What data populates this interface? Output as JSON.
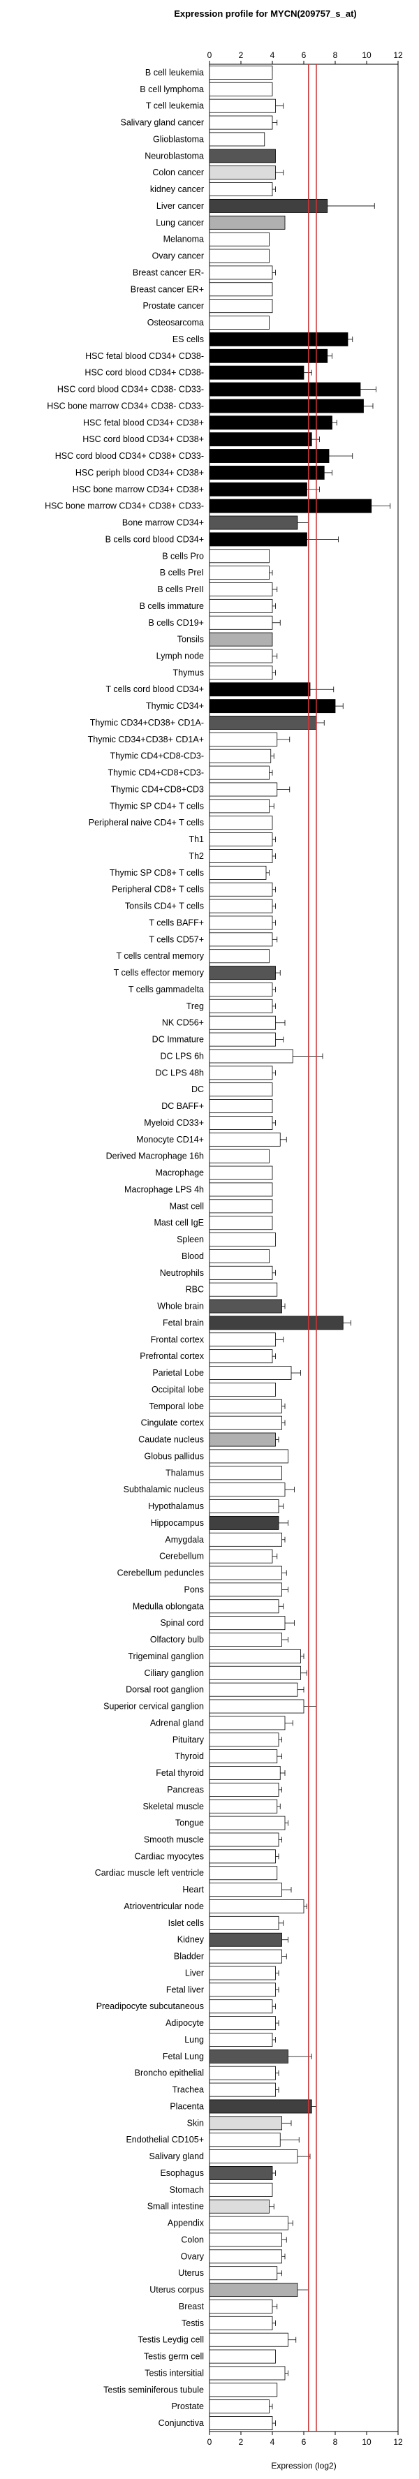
{
  "chart_data": {
    "type": "bar",
    "orientation": "horizontal",
    "title": "Expression profile for MYCN(209757_s_at)",
    "xlabel": "Expression (log2)",
    "xlim": [
      0,
      12
    ],
    "xticks": [
      0,
      2,
      4,
      6,
      8,
      10,
      12
    ],
    "reference_lines": [
      {
        "x": 6.3,
        "color": "#cc3333"
      },
      {
        "x": 6.8,
        "color": "#cc3333"
      }
    ],
    "colors": {
      "dark_gray": "#555555",
      "darker_gray": "#404040",
      "light_gray": "#b0b0b0",
      "very_light_gray": "#dcdcdc",
      "black": "#000000",
      "white": "#ffffff",
      "red": "#cc3333"
    },
    "categories": [
      "B cell leukemia",
      "B cell lymphoma",
      "T cell leukemia",
      "Salivary gland cancer",
      "Glioblastoma",
      "Neuroblastoma",
      "Colon cancer",
      "kidney cancer",
      "Liver cancer",
      "Lung cancer",
      "Melanoma",
      "Ovary cancer",
      "Breast cancer ER-",
      "Breast cancer ER+",
      "Prostate cancer",
      "Osteosarcoma",
      "ES cells",
      "HSC fetal blood CD34+ CD38-",
      "HSC cord blood CD34+ CD38-",
      "HSC cord blood CD34+ CD38- CD33-",
      "HSC bone marrow CD34+ CD38- CD33-",
      "HSC fetal blood CD34+ CD38+",
      "HSC cord blood CD34+ CD38+",
      "HSC cord blood CD34+ CD38+ CD33-",
      "HSC periph blood CD34+ CD38+",
      "HSC bone marrow CD34+ CD38+",
      "HSC bone marrow CD34+ CD38+ CD33-",
      "Bone marrow CD34+",
      "B cells cord blood CD34+",
      "B cells Pro",
      "B cells PreI",
      "B cells PreII",
      "B cells immature",
      "B cells CD19+",
      "Tonsils",
      "Lymph node",
      "Thymus",
      "T cells cord blood CD34+",
      "Thymic CD34+",
      "Thymic CD34+CD38+ CD1A-",
      "Thymic CD34+CD38+ CD1A+",
      "Thymic CD4+CD8-CD3-",
      "Thymic CD4+CD8+CD3-",
      "Thymic CD4+CD8+CD3",
      "Thymic SP CD4+ T cells",
      "Peripheral naive CD4+ T cells",
      "Th1",
      "Th2",
      "Thymic SP CD8+ T cells",
      "Peripheral CD8+ T cells",
      "Tonsils CD4+ T cells",
      "T cells BAFF+",
      "T cells CD57+",
      "T cells central memory",
      "T cells effector memory",
      "T cells gammadelta",
      "Treg",
      "NK CD56+",
      "DC Immature",
      "DC LPS 6h",
      "DC LPS 48h",
      "DC",
      "DC BAFF+",
      "Myeloid CD33+",
      "Monocyte CD14+",
      "Derived Macrophage 16h",
      "Macrophage",
      "Macrophage LPS 4h",
      "Mast cell",
      "Mast cell IgE",
      "Spleen",
      "Blood",
      "Neutrophils",
      "RBC",
      "Whole brain",
      "Fetal brain",
      "Frontal cortex",
      "Prefrontal cortex",
      "Parietal Lobe",
      "Occipital lobe",
      "Temporal lobe",
      "Cingulate cortex",
      "Caudate nucleus",
      "Globus pallidus",
      "Thalamus",
      "Subthalamic nucleus",
      "Hypothalamus",
      "Hippocampus",
      "Amygdala",
      "Cerebellum",
      "Cerebellum peduncles",
      "Pons",
      "Medulla oblongata",
      "Spinal cord",
      "Olfactory bulb",
      "Trigeminal ganglion",
      "Ciliary ganglion",
      "Dorsal root ganglion",
      "Superior cervical ganglion",
      "Adrenal gland",
      "Pituitary",
      "Thyroid",
      "Fetal thyroid",
      "Pancreas",
      "Skeletal muscle",
      "Tongue",
      "Smooth muscle",
      "Cardiac myocytes",
      "Cardiac muscle left ventricle",
      "Heart",
      "Atrioventricular node",
      "Islet cells",
      "Kidney",
      "Bladder",
      "Liver",
      "Fetal liver",
      "Preadipocyte subcutaneous",
      "Adipocyte",
      "Lung",
      "Fetal Lung",
      "Broncho epithelial",
      "Trachea",
      "Placenta",
      "Skin",
      "Endothelial CD105+",
      "Salivary gland",
      "Esophagus",
      "Stomach",
      "Small intestine",
      "Appendix",
      "Colon",
      "Ovary",
      "Uterus",
      "Uterus corpus",
      "Breast",
      "Testis",
      "Testis Leydig cell",
      "Testis germ cell",
      "Testis intersitial",
      "Testis seminiferous tubule",
      "Prostate",
      "Conjunctiva"
    ],
    "values": [
      4.0,
      4.0,
      4.2,
      4.0,
      3.5,
      4.2,
      4.2,
      4.0,
      7.5,
      4.8,
      3.8,
      3.8,
      4.0,
      4.0,
      4.0,
      3.8,
      8.8,
      7.5,
      6.0,
      9.6,
      9.8,
      7.8,
      6.5,
      7.6,
      7.3,
      6.2,
      10.3,
      5.6,
      6.2,
      3.8,
      3.8,
      4.0,
      4.0,
      4.0,
      4.0,
      4.0,
      4.0,
      6.4,
      8.0,
      6.8,
      4.3,
      3.9,
      3.8,
      4.3,
      3.8,
      4.0,
      4.0,
      4.0,
      3.6,
      4.0,
      4.0,
      4.0,
      4.0,
      3.8,
      4.2,
      4.0,
      4.0,
      4.2,
      4.2,
      5.3,
      4.0,
      4.0,
      4.0,
      4.0,
      4.5,
      3.8,
      4.0,
      4.0,
      4.0,
      4.0,
      4.2,
      3.8,
      4.0,
      4.3,
      4.6,
      8.5,
      4.2,
      4.0,
      5.2,
      4.2,
      4.6,
      4.6,
      4.2,
      5.0,
      4.6,
      4.8,
      4.4,
      4.4,
      4.6,
      4.0,
      4.6,
      4.6,
      4.4,
      4.8,
      4.6,
      5.8,
      5.8,
      5.6,
      6.0,
      4.8,
      4.4,
      4.3,
      4.5,
      4.4,
      4.3,
      4.8,
      4.4,
      4.2,
      4.3,
      4.6,
      6.0,
      4.4,
      4.6,
      4.6,
      4.2,
      4.2,
      4.0,
      4.2,
      4.0,
      5.0,
      4.2,
      4.2,
      6.5,
      4.6,
      4.5,
      5.6,
      4.0,
      4.0,
      3.8,
      5.0,
      4.6,
      4.6,
      4.3,
      5.6,
      4.0,
      4.0,
      5.0,
      4.2,
      4.8,
      4.3,
      3.8,
      4.0
    ],
    "errors": [
      0,
      0,
      0.5,
      0.3,
      0,
      0,
      0.5,
      0.2,
      3.0,
      0,
      0,
      0,
      0.2,
      0,
      0,
      0,
      0.3,
      0.3,
      0.5,
      1.0,
      0.6,
      0.3,
      0.5,
      1.5,
      0.5,
      0.8,
      1.2,
      0.7,
      2.0,
      0,
      0.2,
      0.3,
      0.2,
      0.5,
      0,
      0.3,
      0.2,
      1.5,
      0.5,
      0.5,
      0.8,
      0.2,
      0.2,
      0.8,
      0.3,
      0,
      0.2,
      0.2,
      0.2,
      0.2,
      0.2,
      0.2,
      0.3,
      0,
      0.3,
      0.2,
      0.2,
      0.6,
      0.5,
      1.9,
      0.2,
      0,
      0,
      0.2,
      0.4,
      0,
      0,
      0,
      0,
      0,
      0,
      0,
      0.2,
      0,
      0.2,
      0.5,
      0.5,
      0.2,
      0.6,
      0,
      0.2,
      0.2,
      0.2,
      0,
      0,
      0.6,
      0.3,
      0.6,
      0.2,
      0.3,
      0.3,
      0.4,
      0.3,
      0.6,
      0.4,
      0.2,
      0.4,
      0.4,
      0.8,
      0.5,
      0.2,
      0.3,
      0.3,
      0.2,
      0.2,
      0.2,
      0.2,
      0.2,
      0,
      0.6,
      0.2,
      0.3,
      0.4,
      0.3,
      0.2,
      0.2,
      0.2,
      0.2,
      0.2,
      1.5,
      0.2,
      0.2,
      0.3,
      0.6,
      1.2,
      0.8,
      0.2,
      0,
      0.3,
      0.3,
      0.3,
      0.2,
      0.3,
      0.7,
      0.3,
      0.2,
      0.5,
      0,
      0.2,
      0,
      0.2,
      0.2
    ],
    "bar_colors": [
      "white",
      "white",
      "white",
      "white",
      "white",
      "dark_gray",
      "very_light_gray",
      "white",
      "darker_gray",
      "light_gray",
      "white",
      "white",
      "white",
      "white",
      "white",
      "white",
      "black",
      "black",
      "black",
      "black",
      "black",
      "black",
      "black",
      "black",
      "black",
      "black",
      "black",
      "dark_gray",
      "black",
      "white",
      "white",
      "white",
      "white",
      "white",
      "light_gray",
      "white",
      "white",
      "black",
      "black",
      "dark_gray",
      "white",
      "white",
      "white",
      "white",
      "white",
      "white",
      "white",
      "white",
      "white",
      "white",
      "white",
      "white",
      "white",
      "white",
      "dark_gray",
      "white",
      "white",
      "white",
      "white",
      "white",
      "white",
      "white",
      "white",
      "white",
      "white",
      "white",
      "white",
      "white",
      "white",
      "white",
      "white",
      "white",
      "white",
      "white",
      "dark_gray",
      "darker_gray",
      "white",
      "white",
      "white",
      "white",
      "white",
      "white",
      "light_gray",
      "white",
      "white",
      "white",
      "white",
      "darker_gray",
      "white",
      "white",
      "white",
      "white",
      "white",
      "white",
      "white",
      "white",
      "white",
      "white",
      "white",
      "white",
      "white",
      "white",
      "white",
      "white",
      "white",
      "white",
      "white",
      "white",
      "white",
      "white",
      "white",
      "white",
      "dark_gray",
      "white",
      "white",
      "white",
      "white",
      "white",
      "white",
      "dark_gray",
      "white",
      "white",
      "darker_gray",
      "very_light_gray",
      "white",
      "white",
      "dark_gray",
      "white",
      "very_light_gray",
      "white",
      "white",
      "white",
      "white",
      "light_gray",
      "white",
      "white",
      "white",
      "white",
      "white",
      "white",
      "white",
      "white"
    ]
  }
}
